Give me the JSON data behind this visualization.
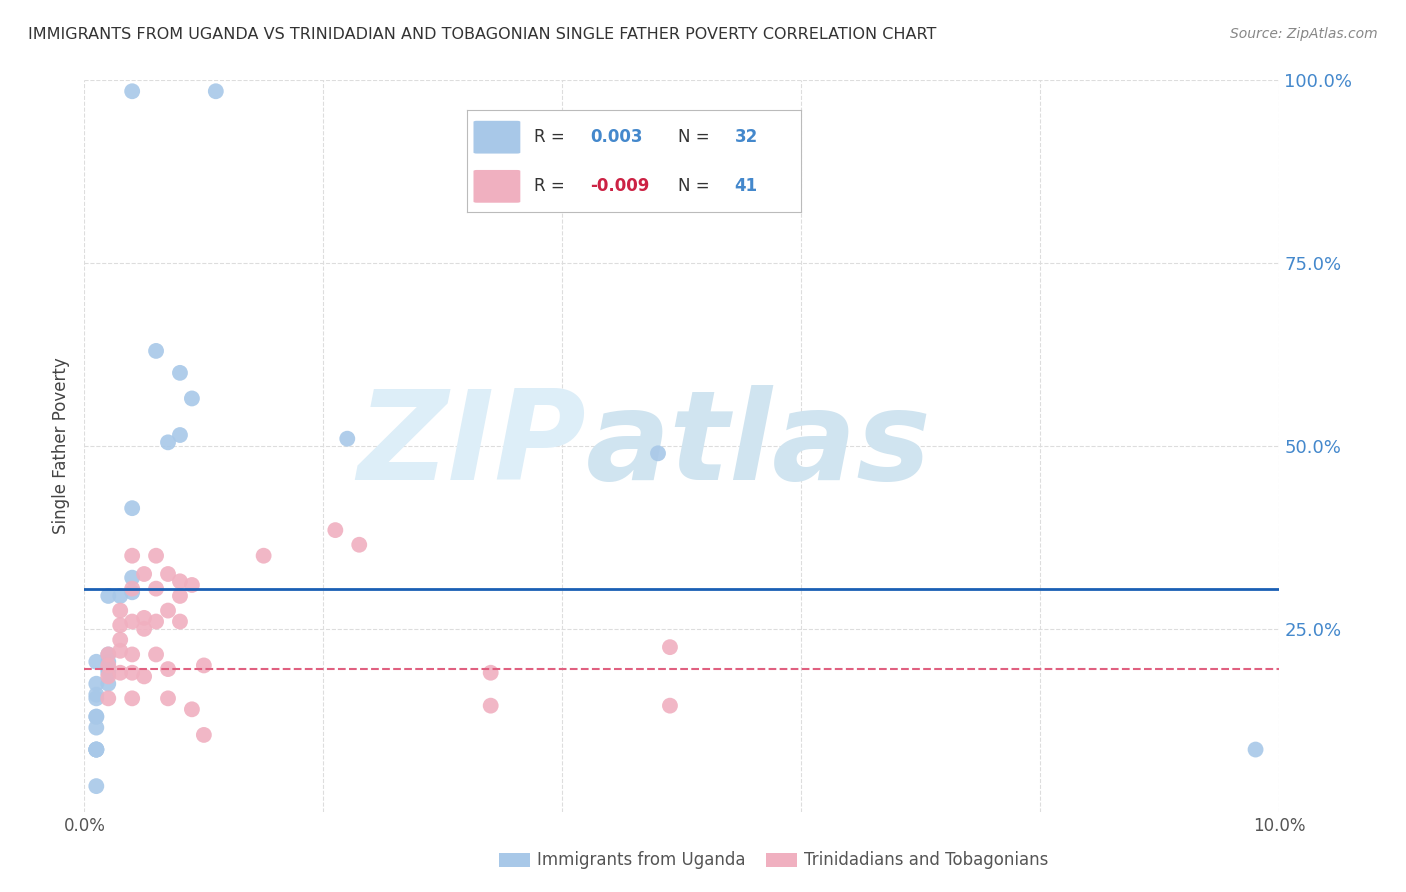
{
  "title": "IMMIGRANTS FROM UGANDA VS TRINIDADIAN AND TOBAGONIAN SINGLE FATHER POVERTY CORRELATION CHART",
  "source": "Source: ZipAtlas.com",
  "xlabel_blue": "Immigrants from Uganda",
  "xlabel_pink": "Trinidadians and Tobagonians",
  "ylabel": "Single Father Poverty",
  "r_blue": 0.003,
  "n_blue": 32,
  "r_pink": -0.009,
  "n_pink": 41,
  "blue_line_y": 0.305,
  "pink_line_y": 0.195,
  "xlim": [
    0,
    0.1
  ],
  "ylim": [
    0,
    1.0
  ],
  "blue_scatter_x": [
    0.004,
    0.011,
    0.006,
    0.008,
    0.009,
    0.008,
    0.007,
    0.004,
    0.004,
    0.004,
    0.003,
    0.002,
    0.002,
    0.002,
    0.002,
    0.002,
    0.002,
    0.001,
    0.001,
    0.001,
    0.001,
    0.001,
    0.001,
    0.001,
    0.001,
    0.001,
    0.001,
    0.001,
    0.001,
    0.022,
    0.048,
    0.098
  ],
  "blue_scatter_y": [
    0.985,
    0.985,
    0.63,
    0.6,
    0.565,
    0.515,
    0.505,
    0.415,
    0.32,
    0.3,
    0.295,
    0.295,
    0.215,
    0.205,
    0.195,
    0.19,
    0.175,
    0.175,
    0.155,
    0.115,
    0.205,
    0.16,
    0.13,
    0.13,
    0.085,
    0.085,
    0.085,
    0.085,
    0.035,
    0.51,
    0.49,
    0.085
  ],
  "pink_scatter_x": [
    0.002,
    0.002,
    0.002,
    0.002,
    0.003,
    0.003,
    0.003,
    0.003,
    0.003,
    0.004,
    0.004,
    0.004,
    0.004,
    0.004,
    0.004,
    0.005,
    0.005,
    0.005,
    0.005,
    0.006,
    0.006,
    0.006,
    0.006,
    0.007,
    0.007,
    0.007,
    0.007,
    0.008,
    0.008,
    0.008,
    0.009,
    0.009,
    0.01,
    0.01,
    0.015,
    0.021,
    0.023,
    0.034,
    0.034,
    0.049,
    0.049
  ],
  "pink_scatter_y": [
    0.215,
    0.2,
    0.185,
    0.155,
    0.275,
    0.255,
    0.235,
    0.22,
    0.19,
    0.35,
    0.305,
    0.26,
    0.215,
    0.19,
    0.155,
    0.325,
    0.265,
    0.25,
    0.185,
    0.35,
    0.305,
    0.26,
    0.215,
    0.325,
    0.275,
    0.195,
    0.155,
    0.315,
    0.295,
    0.26,
    0.31,
    0.14,
    0.2,
    0.105,
    0.35,
    0.385,
    0.365,
    0.145,
    0.19,
    0.225,
    0.145
  ],
  "blue_color": "#a8c8e8",
  "pink_color": "#f0b0c0",
  "blue_line_color": "#1a5fb4",
  "pink_line_color": "#e06080",
  "watermark_top": "ZIP",
  "watermark_bot": "atlas",
  "watermark_color": "#ddeef8",
  "watermark_color2": "#d0e4f0",
  "background_color": "#ffffff",
  "grid_color": "#dddddd",
  "ytick_color": "#4488cc",
  "title_color": "#333333",
  "source_color": "#888888"
}
